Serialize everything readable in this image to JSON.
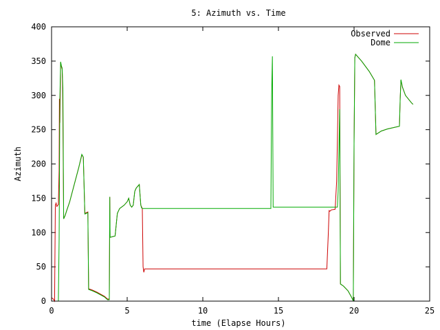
{
  "chart_data": {
    "type": "line",
    "title": "5: Azimuth vs. Time",
    "xlabel": "time (Elapse Hours)",
    "ylabel": "Azimuth",
    "xlim": [
      0,
      25
    ],
    "ylim": [
      0,
      400
    ],
    "xticks": [
      0,
      5,
      10,
      15,
      20,
      25
    ],
    "yticks": [
      0,
      50,
      100,
      150,
      200,
      250,
      300,
      350,
      400
    ],
    "grid": false,
    "legend_position": "top-right",
    "series": [
      {
        "name": "Observed",
        "color": "#cc0000",
        "points": [
          [
            0,
            5
          ],
          [
            0.12,
            3
          ],
          [
            0.2,
            0
          ],
          [
            0.25,
            140
          ],
          [
            0.3,
            143
          ],
          [
            0.35,
            138
          ],
          [
            0.45,
            141
          ],
          [
            0.5,
            190
          ],
          [
            0.52,
            295
          ],
          [
            0.55,
            260
          ],
          [
            0.6,
            348
          ],
          [
            0.65,
            342
          ],
          [
            0.7,
            338
          ],
          [
            0.73,
            310
          ],
          [
            0.8,
            120
          ],
          [
            0.9,
            125
          ],
          [
            1.0,
            132
          ],
          [
            1.2,
            145
          ],
          [
            1.5,
            170
          ],
          [
            1.8,
            195
          ],
          [
            2.0,
            213
          ],
          [
            2.1,
            210
          ],
          [
            2.2,
            128
          ],
          [
            2.4,
            130
          ],
          [
            2.45,
            18
          ],
          [
            2.7,
            16
          ],
          [
            3.0,
            13
          ],
          [
            3.5,
            7
          ],
          [
            3.7,
            3
          ],
          [
            3.82,
            3
          ],
          [
            3.85,
            152
          ],
          [
            3.87,
            93
          ],
          [
            4.2,
            95
          ],
          [
            4.35,
            128
          ],
          [
            4.5,
            135
          ],
          [
            4.8,
            140
          ],
          [
            5.0,
            145
          ],
          [
            5.1,
            150
          ],
          [
            5.2,
            140
          ],
          [
            5.3,
            137
          ],
          [
            5.4,
            140
          ],
          [
            5.5,
            160
          ],
          [
            5.6,
            165
          ],
          [
            5.8,
            170
          ],
          [
            5.9,
            140
          ],
          [
            6.0,
            135
          ],
          [
            6.05,
            50
          ],
          [
            6.1,
            42
          ],
          [
            6.15,
            47
          ],
          [
            10.0,
            47
          ],
          [
            14.0,
            47
          ],
          [
            18.2,
            47
          ],
          [
            18.3,
            100
          ],
          [
            18.35,
            132
          ],
          [
            18.4,
            131
          ],
          [
            18.5,
            133
          ],
          [
            18.75,
            134
          ],
          [
            18.85,
            175
          ],
          [
            18.95,
            300
          ],
          [
            19.0,
            315
          ],
          [
            19.05,
            313
          ],
          [
            19.1,
            25
          ],
          [
            19.3,
            22
          ],
          [
            19.6,
            15
          ],
          [
            19.85,
            5
          ],
          [
            19.95,
            1
          ],
          [
            20.0,
            230
          ],
          [
            20.05,
            355
          ],
          [
            20.1,
            360
          ],
          [
            20.5,
            350
          ],
          [
            21.0,
            335
          ],
          [
            21.35,
            322
          ],
          [
            21.45,
            243
          ],
          [
            21.8,
            248
          ],
          [
            22.2,
            251
          ],
          [
            22.6,
            253
          ],
          [
            23.0,
            255
          ],
          [
            23.05,
            295
          ],
          [
            23.1,
            322
          ],
          [
            23.2,
            312
          ],
          [
            23.4,
            300
          ],
          [
            23.8,
            289
          ],
          [
            23.9,
            287
          ]
        ]
      },
      {
        "name": "Dome",
        "color": "#00aa00",
        "points": [
          [
            0.45,
            0
          ],
          [
            0.5,
            90
          ],
          [
            0.55,
            295
          ],
          [
            0.6,
            349
          ],
          [
            0.65,
            343
          ],
          [
            0.7,
            340
          ],
          [
            0.75,
            310
          ],
          [
            0.8,
            120
          ],
          [
            0.9,
            125
          ],
          [
            1.0,
            132
          ],
          [
            1.2,
            145
          ],
          [
            1.5,
            170
          ],
          [
            1.8,
            195
          ],
          [
            2.0,
            214
          ],
          [
            2.1,
            210
          ],
          [
            2.2,
            127
          ],
          [
            2.4,
            129
          ],
          [
            2.45,
            17
          ],
          [
            2.7,
            15
          ],
          [
            3.0,
            12
          ],
          [
            3.5,
            6
          ],
          [
            3.7,
            2
          ],
          [
            3.82,
            2
          ],
          [
            3.85,
            152
          ],
          [
            3.87,
            93
          ],
          [
            4.2,
            95
          ],
          [
            4.35,
            128
          ],
          [
            4.5,
            135
          ],
          [
            4.8,
            140
          ],
          [
            5.0,
            145
          ],
          [
            5.1,
            150
          ],
          [
            5.2,
            140
          ],
          [
            5.3,
            137
          ],
          [
            5.4,
            140
          ],
          [
            5.5,
            160
          ],
          [
            5.6,
            165
          ],
          [
            5.8,
            170
          ],
          [
            5.9,
            140
          ],
          [
            5.95,
            136
          ],
          [
            6.0,
            135
          ],
          [
            10.0,
            135
          ],
          [
            14.5,
            135
          ],
          [
            14.55,
            300
          ],
          [
            14.6,
            357
          ],
          [
            14.65,
            137
          ],
          [
            16.0,
            137
          ],
          [
            18.0,
            137
          ],
          [
            18.9,
            137
          ],
          [
            18.95,
            160
          ],
          [
            19.05,
            280
          ],
          [
            19.1,
            25
          ],
          [
            19.3,
            22
          ],
          [
            19.6,
            15
          ],
          [
            19.85,
            5
          ],
          [
            19.95,
            0
          ],
          [
            20.0,
            230
          ],
          [
            20.05,
            355
          ],
          [
            20.1,
            360
          ],
          [
            20.5,
            350
          ],
          [
            21.0,
            335
          ],
          [
            21.35,
            322
          ],
          [
            21.45,
            243
          ],
          [
            21.8,
            248
          ],
          [
            22.2,
            251
          ],
          [
            22.6,
            253
          ],
          [
            23.0,
            255
          ],
          [
            23.05,
            295
          ],
          [
            23.1,
            323
          ],
          [
            23.2,
            312
          ],
          [
            23.4,
            300
          ],
          [
            23.8,
            289
          ],
          [
            23.9,
            287
          ]
        ]
      }
    ]
  }
}
